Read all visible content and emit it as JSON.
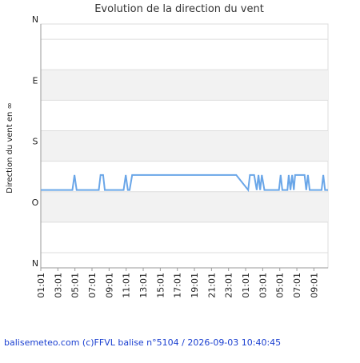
{
  "chart_data": {
    "type": "line",
    "title": "Evolution de la direction du vent",
    "y_label": "Direction du vent en ∞",
    "footer": "balisemeteo.com (c)FFVL balise n°5104 / 2026-09-03 10:40:45",
    "xlim": [
      0,
      33.65
    ],
    "xticks": [
      {
        "value": 0,
        "label": "01:01"
      },
      {
        "value": 2,
        "label": "03:01"
      },
      {
        "value": 4,
        "label": "05:01"
      },
      {
        "value": 6,
        "label": "07:01"
      },
      {
        "value": 8,
        "label": "09:01"
      },
      {
        "value": 10,
        "label": "11:01"
      },
      {
        "value": 12,
        "label": "13:01"
      },
      {
        "value": 14,
        "label": "15:01"
      },
      {
        "value": 16,
        "label": "17:01"
      },
      {
        "value": 18,
        "label": "19:01"
      },
      {
        "value": 20,
        "label": "21:01"
      },
      {
        "value": 22,
        "label": "23:01"
      },
      {
        "value": 24,
        "label": "01:01"
      },
      {
        "value": 26,
        "label": "03:01"
      },
      {
        "value": 28,
        "label": "05:01"
      },
      {
        "value": 30,
        "label": "07:01"
      },
      {
        "value": 32,
        "label": "09:01"
      }
    ],
    "ylim": [
      360,
      0
    ],
    "yticks": [
      {
        "value": 0,
        "label": "N"
      },
      {
        "value": 90,
        "label": "E"
      },
      {
        "value": 180,
        "label": "S"
      },
      {
        "value": 270,
        "label": "O"
      },
      {
        "value": 360,
        "label": "N"
      }
    ],
    "minor_yticks": [
      22.5,
      67.5,
      112.5,
      157.5,
      202.5,
      247.5,
      292.5,
      337.5
    ],
    "grid": true,
    "series": [
      {
        "color": "#6aa6e8",
        "x": [
          0,
          3.7,
          3.95,
          4.2,
          6.8,
          7.0,
          7.3,
          7.5,
          9.7,
          9.95,
          10.2,
          10.4,
          10.7,
          22.9,
          24.3,
          24.5,
          25.0,
          25.3,
          25.5,
          25.7,
          25.9,
          26.2,
          27.9,
          28.1,
          28.3,
          28.9,
          29.05,
          29.25,
          29.45,
          29.65,
          29.8,
          30.9,
          31.1,
          31.3,
          31.5,
          32.9,
          33.1,
          33.3,
          33.65
        ],
        "values": [
          245,
          245,
          223,
          245,
          245,
          223,
          223,
          245,
          245,
          223,
          245,
          245,
          223,
          223,
          245,
          223,
          223,
          245,
          223,
          245,
          223,
          245,
          245,
          223,
          245,
          245,
          223,
          245,
          223,
          245,
          223,
          223,
          245,
          223,
          245,
          245,
          223,
          245,
          245
        ]
      }
    ]
  }
}
